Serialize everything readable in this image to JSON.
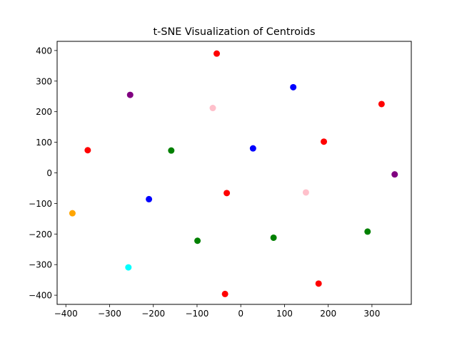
{
  "chart_data": {
    "type": "scatter",
    "title": "t-SNE Visualization of Centroids",
    "xlabel": "",
    "ylabel": "",
    "xlim": [
      -420,
      390
    ],
    "ylim": [
      -430,
      430
    ],
    "xticks": [
      -400,
      -300,
      -200,
      -100,
      0,
      100,
      200,
      300
    ],
    "yticks": [
      -400,
      -300,
      -200,
      -100,
      0,
      100,
      200,
      300,
      400
    ],
    "xtick_labels": [
      "−400",
      "−300",
      "−200",
      "−100",
      "0",
      "100",
      "200",
      "300"
    ],
    "ytick_labels": [
      "−400",
      "−300",
      "−200",
      "−100",
      "0",
      "100",
      "200",
      "300",
      "400"
    ],
    "grid": false,
    "legend": false,
    "points": [
      {
        "x": -55,
        "y": 390,
        "color": "#ff0000"
      },
      {
        "x": 120,
        "y": 280,
        "color": "#0000ff"
      },
      {
        "x": -253,
        "y": 255,
        "color": "#800080"
      },
      {
        "x": 322,
        "y": 225,
        "color": "#ff0000"
      },
      {
        "x": -64,
        "y": 212,
        "color": "#ffc0cb"
      },
      {
        "x": 190,
        "y": 102,
        "color": "#ff0000"
      },
      {
        "x": -350,
        "y": 74,
        "color": "#ff0000"
      },
      {
        "x": 28,
        "y": 80,
        "color": "#0000ff"
      },
      {
        "x": -159,
        "y": 73,
        "color": "#008000"
      },
      {
        "x": 352,
        "y": -5,
        "color": "#800080"
      },
      {
        "x": -32,
        "y": -66,
        "color": "#ff0000"
      },
      {
        "x": 149,
        "y": -64,
        "color": "#ffc0cb"
      },
      {
        "x": -210,
        "y": -86,
        "color": "#0000ff"
      },
      {
        "x": -385,
        "y": -132,
        "color": "#ffa500"
      },
      {
        "x": 290,
        "y": -192,
        "color": "#008000"
      },
      {
        "x": 75,
        "y": -212,
        "color": "#008000"
      },
      {
        "x": -99,
        "y": -222,
        "color": "#008000"
      },
      {
        "x": -257,
        "y": -309,
        "color": "#00ffff"
      },
      {
        "x": 178,
        "y": -362,
        "color": "#ff0000"
      },
      {
        "x": -36,
        "y": -396,
        "color": "#ff0000"
      }
    ]
  }
}
